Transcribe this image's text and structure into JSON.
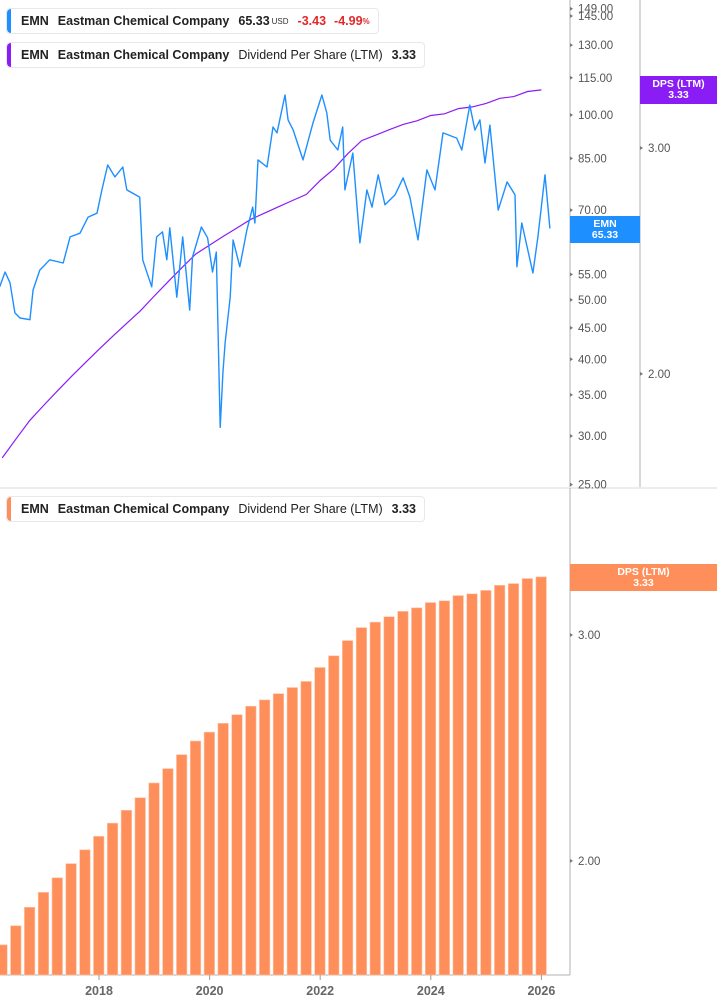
{
  "legend_price": {
    "ticker": "EMN",
    "company": "Eastman Chemical Company",
    "price": "65.33",
    "currency": "USD",
    "change": "-3.43",
    "change_pct": "-4.99",
    "pct_sign": "%"
  },
  "legend_dps_top": {
    "ticker": "EMN",
    "company": "Eastman Chemical Company",
    "metric": "Dividend Per Share (LTM)",
    "value": "3.33"
  },
  "legend_dps_bottom": {
    "ticker": "EMN",
    "company": "Eastman Chemical Company",
    "metric": "Dividend Per Share (LTM)",
    "value": "3.33"
  },
  "tags": {
    "price": {
      "label": "EMN",
      "value": "65.33"
    },
    "dps_top": {
      "label": "DPS (LTM)",
      "value": "3.33"
    },
    "dps_bottom": {
      "label": "DPS (LTM)",
      "value": "3.33"
    }
  },
  "colors": {
    "price": "#1e8fff",
    "dps_line": "#8a1cf5",
    "dps_bars": "#ff8f5a",
    "axis": "#b0b0b0",
    "negative": "#e0292b"
  },
  "chart_data": [
    {
      "type": "line",
      "panel": "top",
      "scale": "log",
      "series": [
        {
          "name": "EMN",
          "axis": "price",
          "values": [
            [
              "2016-03-15",
              52.5
            ],
            [
              "2016-04-20",
              55.5
            ],
            [
              "2016-05-22",
              53.3
            ],
            [
              "2016-06-24",
              47.6
            ],
            [
              "2016-07-27",
              46.7
            ],
            [
              "2016-10-01",
              46.4
            ],
            [
              "2016-10-22",
              51.9
            ],
            [
              "2016-12-06",
              55.9
            ],
            [
              "2017-02-10",
              58.1
            ],
            [
              "2017-05-08",
              57.4
            ],
            [
              "2017-06-23",
              63.3
            ],
            [
              "2017-08-28",
              64.2
            ],
            [
              "2017-10-20",
              68.2
            ],
            [
              "2017-12-18",
              69.2
            ],
            [
              "2018-01-20",
              75.5
            ],
            [
              "2018-02-28",
              82.9
            ],
            [
              "2018-04-15",
              79.3
            ],
            [
              "2018-06-06",
              82.3
            ],
            [
              "2018-07-02",
              75.5
            ],
            [
              "2018-09-26",
              73.5
            ],
            [
              "2018-10-16",
              58.1
            ],
            [
              "2018-12-14",
              52.5
            ],
            [
              "2019-01-16",
              63.3
            ],
            [
              "2019-02-25",
              64.5
            ],
            [
              "2019-03-23",
              58.1
            ],
            [
              "2019-04-12",
              65.5
            ],
            [
              "2019-05-28",
              50.5
            ],
            [
              "2019-07-06",
              63.3
            ],
            [
              "2019-08-22",
              48.1
            ],
            [
              "2019-09-10",
              58.7
            ],
            [
              "2019-11-08",
              65.7
            ],
            [
              "2019-12-18",
              63.1
            ],
            [
              "2020-01-20",
              55.5
            ],
            [
              "2020-02-15",
              59.8
            ],
            [
              "2020-03-10",
              31.0
            ],
            [
              "2020-03-28",
              38.0
            ],
            [
              "2020-04-12",
              42.5
            ],
            [
              "2020-05-15",
              50.5
            ],
            [
              "2020-06-04",
              62.6
            ],
            [
              "2020-07-18",
              56.6
            ],
            [
              "2020-09-04",
              65.0
            ],
            [
              "2020-10-12",
              70.8
            ],
            [
              "2020-10-26",
              66.7
            ],
            [
              "2020-11-16",
              84.5
            ],
            [
              "2021-01-15",
              82.3
            ],
            [
              "2021-02-24",
              95.6
            ],
            [
              "2021-03-20",
              93.5
            ],
            [
              "2021-05-12",
              107.8
            ],
            [
              "2021-06-02",
              98.2
            ],
            [
              "2021-07-05",
              94.5
            ],
            [
              "2021-09-09",
              84.5
            ],
            [
              "2021-11-14",
              97.1
            ],
            [
              "2022-01-12",
              107.8
            ],
            [
              "2022-02-14",
              100.8
            ],
            [
              "2022-03-06",
              91.0
            ],
            [
              "2022-04-26",
              87.7
            ],
            [
              "2022-05-28",
              95.6
            ],
            [
              "2022-06-12",
              75.5
            ],
            [
              "2022-08-03",
              86.7
            ],
            [
              "2022-09-20",
              61.9
            ],
            [
              "2022-11-05",
              75.5
            ],
            [
              "2022-12-08",
              70.8
            ],
            [
              "2023-01-19",
              79.9
            ],
            [
              "2023-03-03",
              71.4
            ],
            [
              "2023-05-08",
              74.1
            ],
            [
              "2023-07-01",
              79.0
            ],
            [
              "2023-08-15",
              73.5
            ],
            [
              "2023-10-08",
              62.6
            ],
            [
              "2023-12-06",
              81.4
            ],
            [
              "2024-01-29",
              75.5
            ],
            [
              "2024-03-21",
              93.5
            ],
            [
              "2024-06-20",
              91.7
            ],
            [
              "2024-07-23",
              87.7
            ],
            [
              "2024-09-15",
              103.8
            ],
            [
              "2024-10-18",
              94.5
            ],
            [
              "2024-11-21",
              98.2
            ],
            [
              "2024-12-24",
              83.5
            ],
            [
              "2025-01-26",
              96.3
            ],
            [
              "2025-03-20",
              70.0
            ],
            [
              "2025-05-18",
              77.8
            ],
            [
              "2025-07-09",
              74.1
            ],
            [
              "2025-07-22",
              56.6
            ],
            [
              "2025-08-24",
              66.7
            ],
            [
              "2025-11-06",
              55.3
            ],
            [
              "2025-12-08",
              63.3
            ],
            [
              "2026-01-25",
              79.9
            ],
            [
              "2026-02-27",
              65.33
            ]
          ]
        },
        {
          "name": "Dividend Per Share (LTM)",
          "axis": "dps",
          "values_from": "bars"
        }
      ],
      "y_ticks_price": [
        "149.00",
        "145.00",
        "130.00",
        "115.00",
        "100.00",
        "85.00",
        "70.00",
        "55.00",
        "50.00",
        "45.00",
        "40.00",
        "35.00",
        "30.00",
        "25.00"
      ],
      "y_ticks_dps": [
        "3.00",
        "2.00"
      ],
      "ylim_price": [
        25,
        150
      ]
    },
    {
      "type": "bar",
      "panel": "bottom",
      "scale": "log",
      "name": "Dividend Per Share (LTM)",
      "dates": [
        "2016-04-01",
        "2016-07-01",
        "2016-10-01",
        "2017-01-01",
        "2017-04-01",
        "2017-07-01",
        "2017-10-01",
        "2018-01-01",
        "2018-04-01",
        "2018-07-01",
        "2018-10-01",
        "2019-01-01",
        "2019-04-01",
        "2019-07-01",
        "2019-10-01",
        "2020-01-01",
        "2020-04-01",
        "2020-07-01",
        "2020-10-01",
        "2021-01-01",
        "2021-04-01",
        "2021-07-01",
        "2021-10-01",
        "2022-01-01",
        "2022-04-01",
        "2022-07-01",
        "2022-10-01",
        "2023-01-01",
        "2023-04-01",
        "2023-07-01",
        "2023-10-01",
        "2024-01-01",
        "2024-04-01",
        "2024-07-01",
        "2024-10-01",
        "2025-01-01",
        "2025-04-01",
        "2025-07-01",
        "2025-10-01",
        "2026-01-01"
      ],
      "values": [
        1.72,
        1.78,
        1.84,
        1.89,
        1.94,
        1.99,
        2.04,
        2.09,
        2.14,
        2.19,
        2.24,
        2.3,
        2.36,
        2.42,
        2.48,
        2.52,
        2.56,
        2.6,
        2.64,
        2.67,
        2.7,
        2.73,
        2.76,
        2.83,
        2.89,
        2.97,
        3.04,
        3.07,
        3.1,
        3.13,
        3.15,
        3.18,
        3.19,
        3.22,
        3.23,
        3.25,
        3.28,
        3.29,
        3.32,
        3.33
      ],
      "y_ticks": [
        "3.00",
        "2.00"
      ],
      "x_ticks": [
        "2018",
        "2020",
        "2022",
        "2024",
        "2026"
      ]
    }
  ]
}
